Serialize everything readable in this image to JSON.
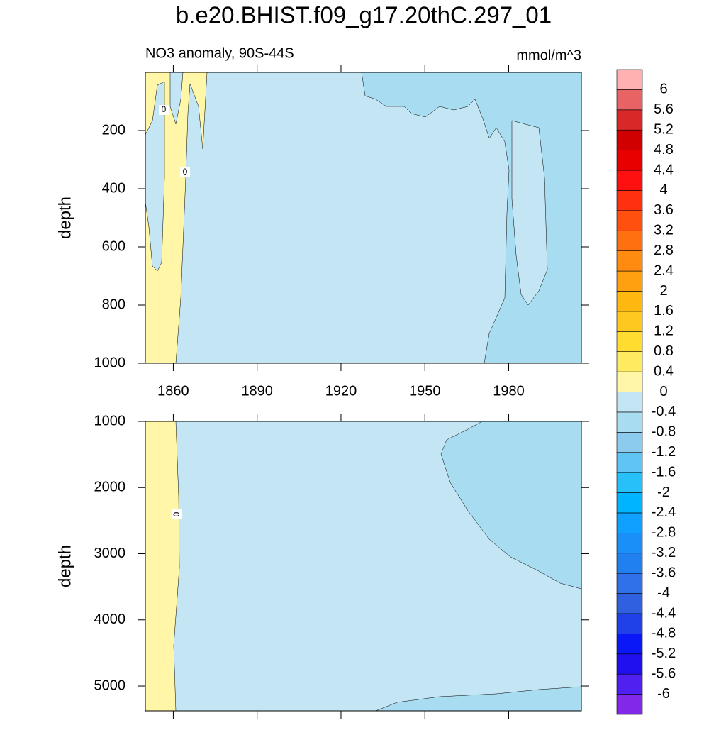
{
  "chart_data": {
    "type": "contour",
    "title": "b.e20.BHIST.f09_g17.20thC.297_01",
    "subtitle_left": "NO3 anomaly, 90S-44S",
    "subtitle_right": "mmol/m^3",
    "xlim": [
      1850,
      2006
    ],
    "xticks": [
      1860,
      1890,
      1920,
      1950,
      1980
    ],
    "panels": [
      {
        "ylabel": "depth",
        "ylim": [
          0,
          1000
        ],
        "yticks": [
          200,
          400,
          600,
          800,
          1000
        ],
        "contour_labels": [
          0,
          0
        ]
      },
      {
        "ylabel": "depth",
        "ylim": [
          1000,
          5375
        ],
        "yticks": [
          1000,
          2000,
          3000,
          4000,
          5000
        ],
        "contour_labels": [
          0
        ]
      }
    ],
    "colorbar": {
      "levels": [
        -6,
        -5.6,
        -5.2,
        -4.8,
        -4.4,
        -4,
        -3.6,
        -3.2,
        -2.8,
        -2.4,
        -2,
        -1.6,
        -1.2,
        -0.8,
        -0.4,
        0,
        0.4,
        0.8,
        1.2,
        1.6,
        2,
        2.4,
        2.8,
        3.2,
        3.6,
        4,
        4.4,
        4.8,
        5.2,
        5.6,
        6
      ],
      "colors": [
        "#8228e8",
        "#5020f0",
        "#2010f0",
        "#0a18f8",
        "#2040e8",
        "#3060e0",
        "#3070e8",
        "#2080f0",
        "#1890f8",
        "#10a0ff",
        "#00b4ff",
        "#28c0f8",
        "#60c4f4",
        "#8ccbee",
        "#a8dcf0",
        "#c4e6f4",
        "#fff6a8",
        "#ffea60",
        "#ffdc30",
        "#ffc820",
        "#ffb810",
        "#ffa010",
        "#ff8c10",
        "#ff7010",
        "#ff5010",
        "#ff3010",
        "#ff1010",
        "#e80000",
        "#d00000",
        "#d82828",
        "#e86464",
        "#ffb0b0"
      ]
    }
  }
}
